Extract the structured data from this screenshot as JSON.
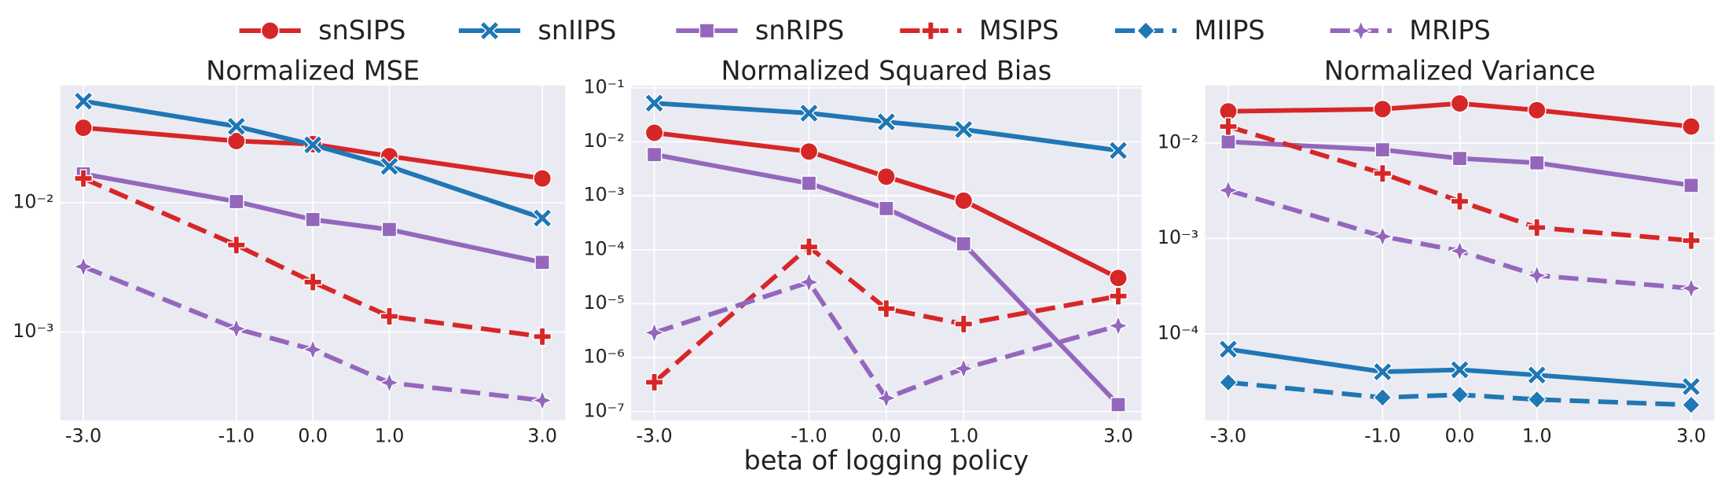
{
  "chart_data": [
    {
      "type": "line",
      "title": "Normalized MSE",
      "log_y": true,
      "grid": true,
      "x": [
        {
          "value": -3,
          "label": "-3.0"
        },
        {
          "value": -1,
          "label": "-1.0"
        },
        {
          "value": 0,
          "label": "0.0"
        },
        {
          "value": 1,
          "label": "1.0"
        },
        {
          "value": 3,
          "label": "3.0"
        }
      ],
      "xlim": [
        -3.3,
        3.3
      ],
      "ylim": [
        0.000207,
        0.0805
      ],
      "yticks": [
        {
          "value": 0.01,
          "label": "10⁻²"
        },
        {
          "value": 0.001,
          "label": "10⁻³"
        }
      ],
      "series": [
        {
          "name": "snSIPS",
          "color": "#d62728",
          "marker": "circle",
          "linestyle": "solid",
          "values": [
            0.038,
            0.03,
            0.0284,
            0.0229,
            0.0154
          ]
        },
        {
          "name": "snIIPS",
          "color": "#1f77b4",
          "marker": "x",
          "linestyle": "solid",
          "values": [
            0.061,
            0.039,
            0.028,
            0.0191,
            0.0076
          ]
        },
        {
          "name": "snRIPS",
          "color": "#9467bd",
          "marker": "square",
          "linestyle": "solid",
          "values": [
            0.0167,
            0.0102,
            0.0074,
            0.0062,
            0.00345
          ]
        },
        {
          "name": "MSIPS",
          "color": "#d62728",
          "marker": "plus",
          "linestyle": "dashed",
          "values": [
            0.0154,
            0.0047,
            0.00243,
            0.00132,
            0.00092
          ]
        },
        {
          "name": "MRIPS",
          "color": "#9467bd",
          "marker": "star",
          "linestyle": "dashed",
          "values": [
            0.0032,
            0.00106,
            0.00073,
            0.000405,
            0.000295
          ]
        }
      ]
    },
    {
      "type": "line",
      "title": "Normalized Squared Bias",
      "x_label": "beta of logging policy",
      "log_y": true,
      "grid": true,
      "x": [
        {
          "value": -3,
          "label": "-3.0"
        },
        {
          "value": -1,
          "label": "-1.0"
        },
        {
          "value": 0,
          "label": "0.0"
        },
        {
          "value": 1,
          "label": "1.0"
        },
        {
          "value": 3,
          "label": "3.0"
        }
      ],
      "xlim": [
        -3.3,
        3.3
      ],
      "ylim": [
        6.9e-08,
        0.11
      ],
      "yticks": [
        {
          "value": 0.1,
          "label": "10⁻¹"
        },
        {
          "value": 0.01,
          "label": "10⁻²"
        },
        {
          "value": 0.001,
          "label": "10⁻³"
        },
        {
          "value": 0.0001,
          "label": "10⁻⁴"
        },
        {
          "value": 1e-05,
          "label": "10⁻⁵"
        },
        {
          "value": 1e-06,
          "label": "10⁻⁶"
        },
        {
          "value": 1e-07,
          "label": "10⁻⁷"
        }
      ],
      "series": [
        {
          "name": "snSIPS",
          "color": "#d62728",
          "marker": "circle",
          "linestyle": "solid",
          "values": [
            0.0147,
            0.0066,
            0.00226,
            0.00081,
            3e-05
          ]
        },
        {
          "name": "snIIPS",
          "color": "#1f77b4",
          "marker": "x",
          "linestyle": "solid",
          "values": [
            0.052,
            0.034,
            0.0234,
            0.0169,
            0.0069
          ]
        },
        {
          "name": "snRIPS",
          "color": "#9467bd",
          "marker": "square",
          "linestyle": "solid",
          "values": [
            0.0058,
            0.0017,
            0.00058,
            0.000129,
            1.35e-07
          ]
        },
        {
          "name": "MSIPS",
          "color": "#d62728",
          "marker": "plus",
          "linestyle": "dashed",
          "values": [
            3.5e-07,
            0.000113,
            8.1e-06,
            4.2e-06,
            1.38e-05
          ]
        },
        {
          "name": "MRIPS",
          "color": "#9467bd",
          "marker": "star",
          "linestyle": "dashed",
          "values": [
            2.9e-06,
            2.5e-05,
            1.78e-07,
            6.3e-07,
            3.9e-06
          ]
        }
      ]
    },
    {
      "type": "line",
      "title": "Normalized Variance",
      "log_y": true,
      "grid": true,
      "x": [
        {
          "value": -3,
          "label": "-3.0"
        },
        {
          "value": -1,
          "label": "-1.0"
        },
        {
          "value": 0,
          "label": "0.0"
        },
        {
          "value": 1,
          "label": "1.0"
        },
        {
          "value": 3,
          "label": "3.0"
        }
      ],
      "xlim": [
        -3.3,
        3.3
      ],
      "ylim": [
        1.24e-05,
        0.04
      ],
      "yticks": [
        {
          "value": 0.01,
          "label": "10⁻²"
        },
        {
          "value": 0.001,
          "label": "10⁻³"
        },
        {
          "value": 0.0001,
          "label": "10⁻⁴"
        }
      ],
      "series": [
        {
          "name": "snSIPS",
          "color": "#d62728",
          "marker": "circle",
          "linestyle": "solid",
          "values": [
            0.0215,
            0.0227,
            0.026,
            0.0221,
            0.0149
          ]
        },
        {
          "name": "snIIPS",
          "color": "#1f77b4",
          "marker": "x",
          "linestyle": "solid",
          "values": [
            6.9e-05,
            4e-05,
            4.2e-05,
            3.7e-05,
            2.8e-05
          ]
        },
        {
          "name": "snRIPS",
          "color": "#9467bd",
          "marker": "square",
          "linestyle": "solid",
          "values": [
            0.0103,
            0.0085,
            0.0069,
            0.0062,
            0.0036
          ]
        },
        {
          "name": "MSIPS",
          "color": "#d62728",
          "marker": "plus",
          "linestyle": "dashed",
          "values": [
            0.0149,
            0.0048,
            0.00245,
            0.0013,
            0.00095
          ]
        },
        {
          "name": "MIIPS",
          "color": "#1f77b4",
          "marker": "diamond",
          "linestyle": "dashed",
          "values": [
            3.1e-05,
            2.15e-05,
            2.3e-05,
            2.05e-05,
            1.8e-05
          ]
        },
        {
          "name": "MRIPS",
          "color": "#9467bd",
          "marker": "star",
          "linestyle": "dashed",
          "values": [
            0.0032,
            0.00105,
            0.00074,
            0.00041,
            0.0003
          ]
        }
      ]
    }
  ]
}
